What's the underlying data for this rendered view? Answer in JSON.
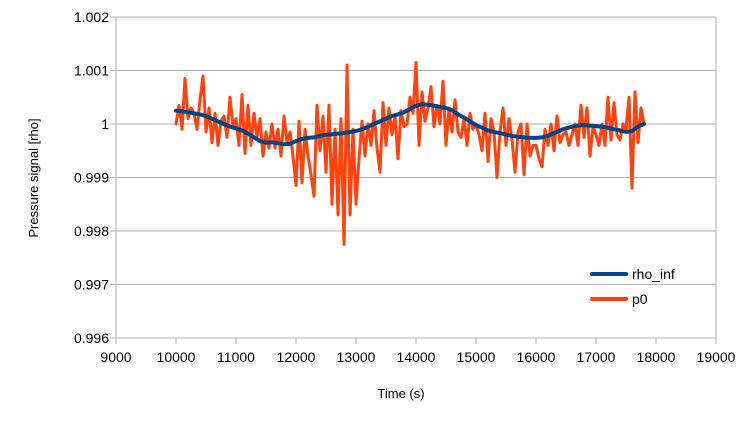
{
  "chart_data": {
    "type": "line",
    "xlabel": "Time (s)",
    "ylabel": "Pressure signal [rho]",
    "xlim": [
      9000,
      19000
    ],
    "ylim": [
      0.996,
      1.002
    ],
    "x_ticks": [
      9000,
      10000,
      11000,
      12000,
      13000,
      14000,
      15000,
      16000,
      17000,
      18000,
      19000
    ],
    "y_ticks": [
      0.996,
      0.997,
      0.998,
      0.999,
      1,
      1.001,
      1.002
    ],
    "x_tick_labels": [
      "9000",
      "10000",
      "11000",
      "12000",
      "13000",
      "14000",
      "15000",
      "16000",
      "17000",
      "18000",
      "19000"
    ],
    "y_tick_labels": [
      "0.996",
      "0.997",
      "0.998",
      "0.999",
      "1",
      "1.001",
      "1.002"
    ],
    "grid": "horizontal",
    "legend_position": "right",
    "series": [
      {
        "name": "rho_inf",
        "color": "#004586",
        "x": [
          10000,
          10100,
          10200,
          10300,
          10400,
          10500,
          10600,
          10700,
          10800,
          10900,
          11000,
          11100,
          11200,
          11300,
          11400,
          11500,
          11600,
          11700,
          11800,
          11900,
          12000,
          12100,
          12200,
          12300,
          12400,
          12500,
          12600,
          12700,
          12800,
          12900,
          13000,
          13100,
          13200,
          13300,
          13400,
          13500,
          13600,
          13700,
          13800,
          13900,
          14000,
          14100,
          14200,
          14300,
          14400,
          14500,
          14600,
          14700,
          14800,
          14900,
          15000,
          15100,
          15200,
          15300,
          15400,
          15500,
          15600,
          15700,
          15800,
          15900,
          16000,
          16100,
          16200,
          16300,
          16400,
          16500,
          16600,
          16700,
          16800,
          16900,
          17000,
          17100,
          17200,
          17300,
          17400,
          17500,
          17600,
          17700,
          17800
        ],
        "y": [
          1.00025,
          1.00024,
          1.00022,
          1.0002,
          1.00018,
          1.00015,
          1.0001,
          1.00005,
          1.0,
          0.99995,
          0.99992,
          0.99988,
          0.99982,
          0.99975,
          0.99968,
          0.99965,
          0.99966,
          0.99964,
          0.99962,
          0.99963,
          0.99968,
          0.99972,
          0.99974,
          0.99975,
          0.99978,
          0.9998,
          0.99981,
          0.99982,
          0.99983,
          0.99985,
          0.99987,
          0.9999,
          0.99995,
          1.0,
          1.00005,
          1.0001,
          1.00015,
          1.00018,
          1.00022,
          1.00028,
          1.00034,
          1.00037,
          1.00036,
          1.00034,
          1.00032,
          1.0003,
          1.00026,
          1.00018,
          1.00012,
          1.00005,
          0.99998,
          0.99993,
          0.99988,
          0.99985,
          0.99983,
          0.9998,
          0.99978,
          0.99976,
          0.99975,
          0.99974,
          0.99974,
          0.99975,
          0.99978,
          0.99983,
          0.99988,
          0.99992,
          0.99995,
          0.99997,
          0.99998,
          0.99997,
          0.99996,
          0.99995,
          0.99993,
          0.9999,
          0.99988,
          0.99985,
          0.99987,
          0.99995,
          1.0
        ]
      },
      {
        "name": "p0",
        "color": "#ff420e",
        "x": [
          10000,
          10050,
          10100,
          10150,
          10200,
          10250,
          10300,
          10350,
          10400,
          10450,
          10500,
          10550,
          10600,
          10650,
          10700,
          10750,
          10800,
          10850,
          10900,
          10950,
          11000,
          11050,
          11100,
          11150,
          11200,
          11250,
          11300,
          11350,
          11400,
          11450,
          11500,
          11550,
          11600,
          11650,
          11700,
          11750,
          11800,
          11850,
          11900,
          11950,
          12000,
          12050,
          12100,
          12150,
          12200,
          12250,
          12300,
          12350,
          12400,
          12450,
          12500,
          12550,
          12600,
          12650,
          12700,
          12750,
          12800,
          12850,
          12900,
          12950,
          13000,
          13050,
          13100,
          13150,
          13200,
          13250,
          13300,
          13350,
          13400,
          13450,
          13500,
          13550,
          13600,
          13650,
          13700,
          13750,
          13800,
          13850,
          13900,
          13950,
          14000,
          14050,
          14100,
          14150,
          14200,
          14250,
          14300,
          14350,
          14400,
          14450,
          14500,
          14550,
          14600,
          14650,
          14700,
          14750,
          14800,
          14850,
          14900,
          14950,
          15000,
          15050,
          15100,
          15150,
          15200,
          15250,
          15300,
          15350,
          15400,
          15450,
          15500,
          15550,
          15600,
          15650,
          15700,
          15750,
          15800,
          15850,
          15900,
          15950,
          16000,
          16050,
          16100,
          16150,
          16200,
          16250,
          16300,
          16350,
          16400,
          16450,
          16500,
          16550,
          16600,
          16650,
          16700,
          16750,
          16800,
          16850,
          16900,
          16950,
          17000,
          17050,
          17100,
          17150,
          17200,
          17250,
          17300,
          17350,
          17400,
          17450,
          17500,
          17550,
          17600,
          17650,
          17700,
          17750,
          17800
        ],
        "y": [
          1.0,
          1.00035,
          0.9999,
          1.00085,
          1.0001,
          1.0003,
          1.0002,
          0.9999,
          1.00045,
          1.0009,
          0.99985,
          1.0003,
          0.99965,
          1.0002,
          0.9996,
          1.00005,
          1.00015,
          0.99975,
          1.0005,
          0.99995,
          1.0001,
          0.9996,
          1.00055,
          0.99945,
          1.00035,
          0.9996,
          1.0002,
          0.99975,
          1.0001,
          0.9994,
          0.99985,
          0.99955,
          1.0,
          0.99955,
          0.9999,
          0.9994,
          1.00015,
          0.99965,
          0.99985,
          0.9994,
          0.99885,
          1.00005,
          0.9989,
          0.9999,
          0.9994,
          0.99905,
          0.99865,
          1.00035,
          0.9995,
          1.00015,
          0.9991,
          1.00035,
          0.9985,
          0.9999,
          0.9983,
          1.0001,
          0.99775,
          1.0011,
          0.9983,
          0.9999,
          0.9985,
          0.99935,
          1.00005,
          0.9994,
          1.0,
          0.9996,
          1.00025,
          0.99955,
          0.9991,
          1.0004,
          0.9996,
          1.0003,
          0.9998,
          1.00015,
          0.99935,
          1.00025,
          0.99995,
          1.0,
          1.0005,
          1.0002,
          1.00115,
          0.9996,
          1.0006,
          1.00005,
          1.0003,
          1.0007,
          0.99995,
          1.00035,
          1.0,
          1.0008,
          0.9996,
          1.0003,
          0.99985,
          1.00045,
          0.99985,
          0.99975,
          1.0001,
          0.9996,
          1.0002,
          0.9999,
          1.0,
          0.9998,
          0.9995,
          1.0002,
          0.9993,
          1.0001,
          0.99985,
          0.999,
          0.99985,
          1.0003,
          0.9996,
          1.0001,
          0.9997,
          0.9991,
          0.99985,
          1.0,
          0.99905,
          1.0,
          0.9994,
          0.9996,
          0.9996,
          0.99935,
          0.9992,
          0.9999,
          0.9996,
          1.0,
          0.9995,
          1.00015,
          0.99965,
          0.9998,
          0.99985,
          0.9996,
          0.9998,
          1.0,
          0.9996,
          1.00035,
          0.99975,
          1.0003,
          0.9994,
          0.99995,
          0.9998,
          0.9996,
          1.0,
          0.9996,
          1.0005,
          0.9997,
          1.0004,
          0.9998,
          0.9997,
          1.0,
          0.9999,
          1.0005,
          0.9988,
          1.0006,
          0.99965,
          1.0003,
          1.0
        ]
      }
    ]
  }
}
